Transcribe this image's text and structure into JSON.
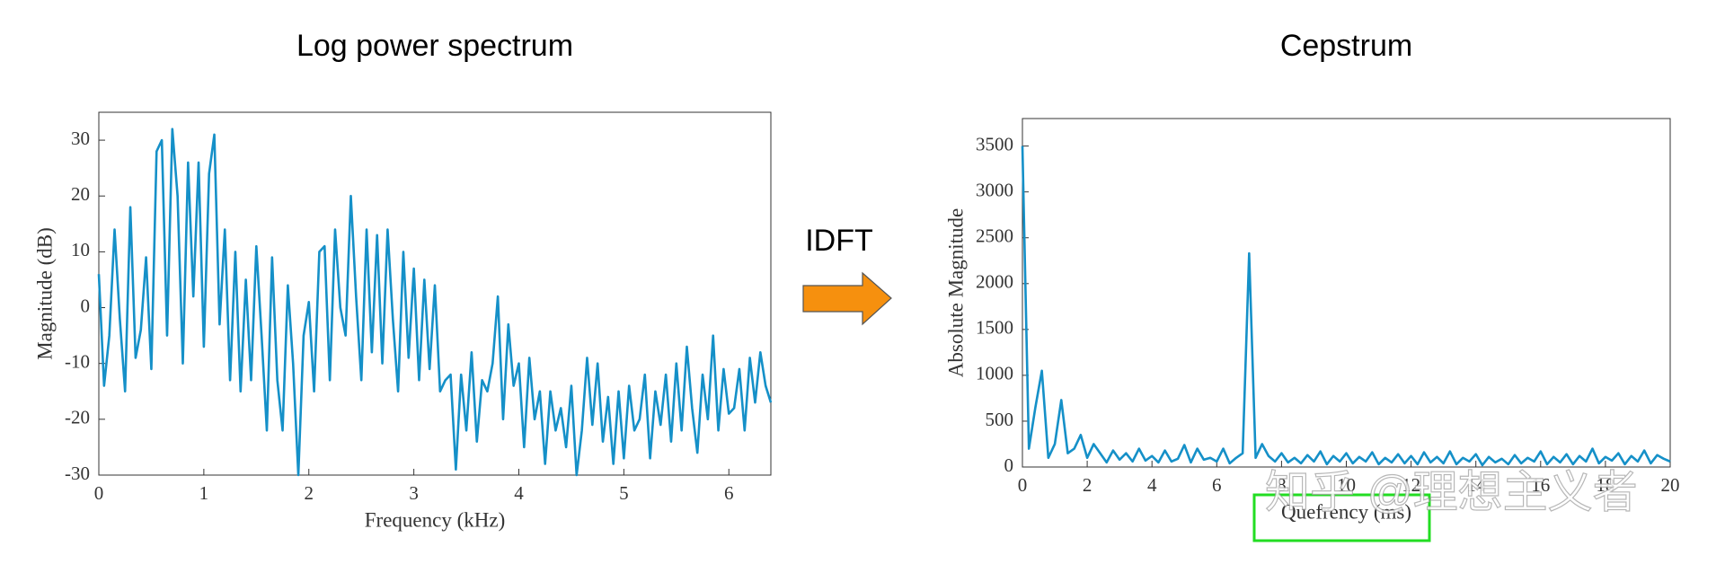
{
  "annotation": "IDFT",
  "watermark": "知乎 @理想主义者",
  "chart_data": [
    {
      "type": "line",
      "title": "Log power spectrum",
      "x_label": "Frequency (kHz)",
      "y_label": "Magnitude (dB)",
      "color": "#1590c8",
      "xlim": [
        0,
        6.4
      ],
      "ylim": [
        -30,
        35
      ],
      "xticks": [
        0,
        1,
        2,
        3,
        4,
        5,
        6
      ],
      "yticks": [
        -30,
        -20,
        -10,
        0,
        10,
        20,
        30
      ],
      "x": [
        0,
        0.05,
        0.1,
        0.15,
        0.2,
        0.25,
        0.3,
        0.35,
        0.4,
        0.45,
        0.5,
        0.55,
        0.6,
        0.65,
        0.7,
        0.75,
        0.8,
        0.85,
        0.9,
        0.95,
        1,
        1.05,
        1.1,
        1.15,
        1.2,
        1.25,
        1.3,
        1.35,
        1.4,
        1.45,
        1.5,
        1.55,
        1.6,
        1.65,
        1.7,
        1.75,
        1.8,
        1.85,
        1.9,
        1.95,
        2,
        2.05,
        2.1,
        2.15,
        2.2,
        2.25,
        2.3,
        2.35,
        2.4,
        2.45,
        2.5,
        2.55,
        2.6,
        2.65,
        2.7,
        2.75,
        2.8,
        2.85,
        2.9,
        2.95,
        3,
        3.05,
        3.1,
        3.15,
        3.2,
        3.25,
        3.3,
        3.35,
        3.4,
        3.45,
        3.5,
        3.55,
        3.6,
        3.65,
        3.7,
        3.75,
        3.8,
        3.85,
        3.9,
        3.95,
        4,
        4.05,
        4.1,
        4.15,
        4.2,
        4.25,
        4.3,
        4.35,
        4.4,
        4.45,
        4.5,
        4.55,
        4.6,
        4.65,
        4.7,
        4.75,
        4.8,
        4.85,
        4.9,
        4.95,
        5,
        5.05,
        5.1,
        5.15,
        5.2,
        5.25,
        5.3,
        5.35,
        5.4,
        5.45,
        5.5,
        5.55,
        5.6,
        5.65,
        5.7,
        5.75,
        5.8,
        5.85,
        5.9,
        5.95,
        6,
        6.05,
        6.1,
        6.15,
        6.2,
        6.25,
        6.3,
        6.35,
        6.4
      ],
      "values": [
        6,
        -14,
        -5,
        14,
        -2,
        -15,
        18,
        -9,
        -4,
        9,
        -11,
        28,
        30,
        -5,
        32,
        20,
        -10,
        26,
        2,
        26,
        -7,
        24,
        31,
        -3,
        14,
        -13,
        10,
        -15,
        5,
        -13,
        11,
        -5,
        -22,
        9,
        -13,
        -22,
        4,
        -10,
        -30,
        -5,
        1,
        -15,
        10,
        11,
        -13,
        14,
        0,
        -5,
        20,
        2,
        -13,
        14,
        -8,
        13,
        -10,
        14,
        -2,
        -15,
        10,
        -9,
        7,
        -13,
        5,
        -11,
        4,
        -15,
        -13,
        -12,
        -29,
        -12,
        -22,
        -8,
        -24,
        -13,
        -15,
        -10,
        2,
        -20,
        -3,
        -14,
        -10,
        -25,
        -9,
        -20,
        -15,
        -28,
        -15,
        -22,
        -18,
        -25,
        -14,
        -30,
        -22,
        -9,
        -21,
        -10,
        -24,
        -16,
        -28,
        -15,
        -27,
        -14,
        -22,
        -20,
        -12,
        -27,
        -15,
        -21,
        -12,
        -24,
        -10,
        -22,
        -7,
        -18,
        -26,
        -12,
        -20,
        -5,
        -22,
        -11,
        -19,
        -18,
        -11,
        -22,
        -9,
        -17,
        -8,
        -14,
        -17
      ]
    },
    {
      "type": "line",
      "title": "Cepstrum",
      "x_label": "Quefrency (ms)",
      "y_label": "Absolute Magnitude",
      "color": "#1590c8",
      "xlim": [
        0,
        20
      ],
      "ylim": [
        0,
        3800
      ],
      "xticks": [
        0,
        2,
        4,
        6,
        8,
        10,
        12,
        14,
        16,
        18,
        20
      ],
      "yticks": [
        0,
        500,
        1000,
        1500,
        2000,
        2500,
        3000,
        3500
      ],
      "x": [
        0,
        0.2,
        0.4,
        0.6,
        0.8,
        1,
        1.2,
        1.4,
        1.6,
        1.8,
        2,
        2.2,
        2.4,
        2.6,
        2.8,
        3,
        3.2,
        3.4,
        3.6,
        3.8,
        4,
        4.2,
        4.4,
        4.6,
        4.8,
        5,
        5.2,
        5.4,
        5.6,
        5.8,
        6,
        6.2,
        6.4,
        6.6,
        6.8,
        7,
        7.2,
        7.4,
        7.6,
        7.8,
        8,
        8.2,
        8.4,
        8.6,
        8.8,
        9,
        9.2,
        9.4,
        9.6,
        9.8,
        10,
        10.2,
        10.4,
        10.6,
        10.8,
        11,
        11.2,
        11.4,
        11.6,
        11.8,
        12,
        12.2,
        12.4,
        12.6,
        12.8,
        13,
        13.2,
        13.4,
        13.6,
        13.8,
        14,
        14.2,
        14.4,
        14.6,
        14.8,
        15,
        15.2,
        15.4,
        15.6,
        15.8,
        16,
        16.2,
        16.4,
        16.6,
        16.8,
        17,
        17.2,
        17.4,
        17.6,
        17.8,
        18,
        18.2,
        18.4,
        18.6,
        18.8,
        19,
        19.2,
        19.4,
        19.6,
        19.8,
        20
      ],
      "values": [
        3500,
        200,
        650,
        1050,
        100,
        250,
        730,
        150,
        200,
        350,
        100,
        250,
        150,
        50,
        180,
        80,
        150,
        60,
        200,
        70,
        120,
        50,
        180,
        60,
        90,
        240,
        50,
        200,
        80,
        100,
        60,
        200,
        40,
        100,
        150,
        2330,
        100,
        250,
        120,
        60,
        150,
        50,
        100,
        40,
        130,
        60,
        170,
        30,
        120,
        60,
        150,
        40,
        110,
        60,
        160,
        30,
        100,
        50,
        140,
        40,
        120,
        30,
        160,
        50,
        110,
        40,
        170,
        30,
        100,
        60,
        140,
        20,
        110,
        50,
        90,
        30,
        130,
        40,
        100,
        60,
        170,
        30,
        110,
        50,
        140,
        30,
        120,
        60,
        200,
        40,
        110,
        70,
        150,
        30,
        120,
        60,
        180,
        40,
        130,
        90,
        60
      ]
    }
  ]
}
